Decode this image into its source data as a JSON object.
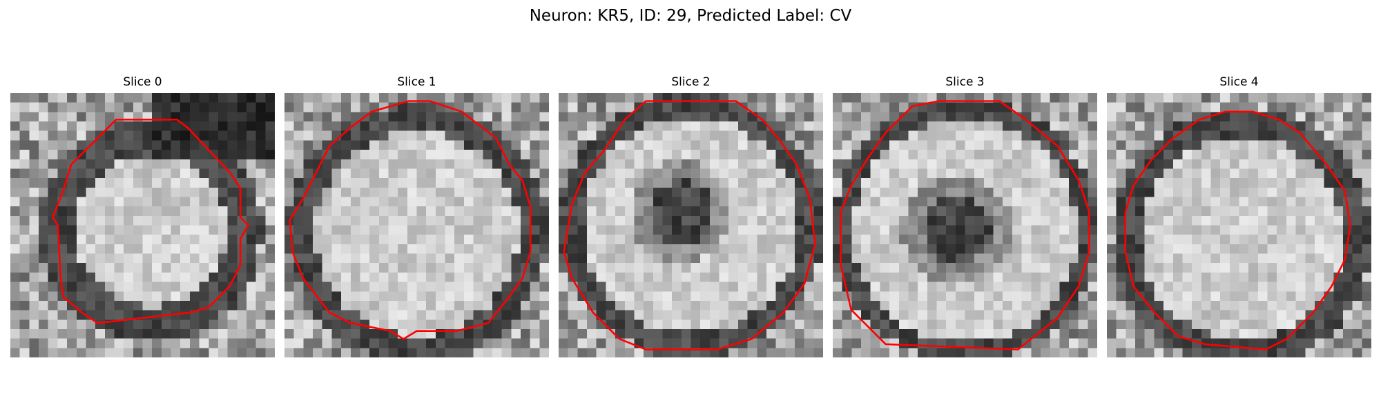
{
  "figure": {
    "title": "Neuron: KR5, ID: 29, Predicted Label: CV"
  },
  "slices": [
    {
      "label": "Slice 0"
    },
    {
      "label": "Slice 1"
    },
    {
      "label": "Slice 2"
    },
    {
      "label": "Slice 3"
    },
    {
      "label": "Slice 4"
    }
  ],
  "colors": {
    "contour": "#ff0000",
    "background": "#ffffff"
  }
}
